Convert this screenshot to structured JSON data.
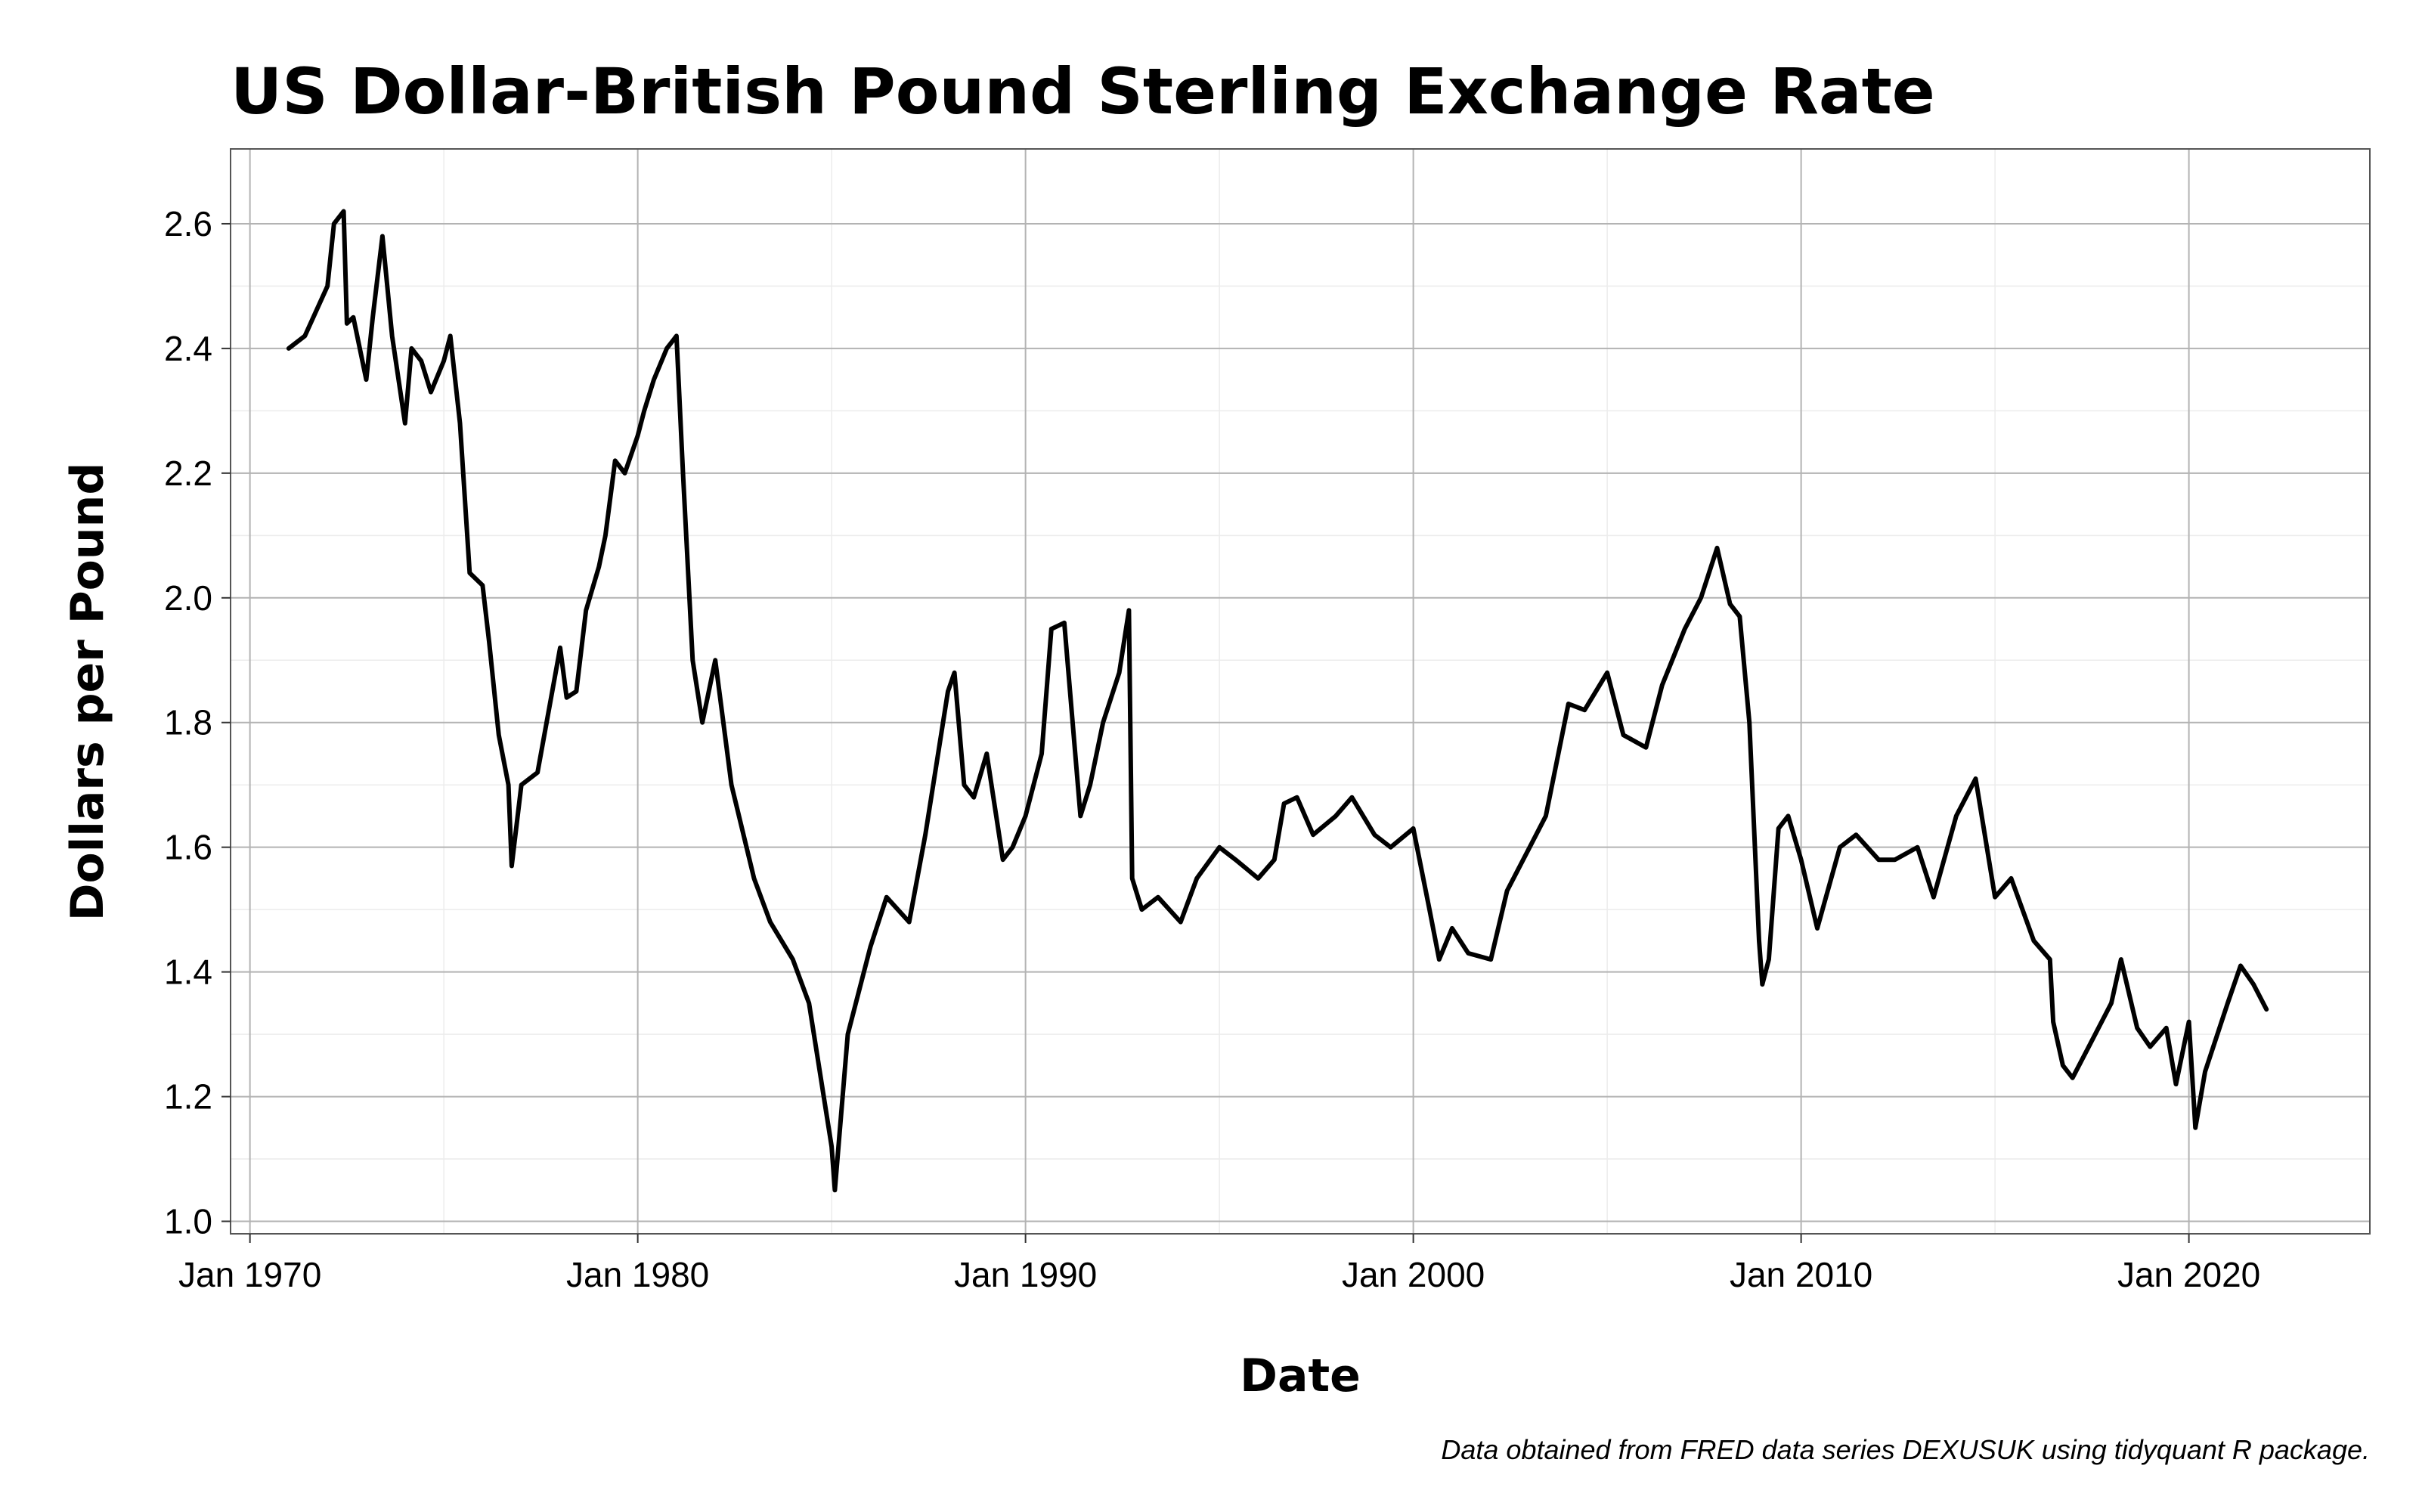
{
  "chart_data": {
    "type": "line",
    "title": "US Dollar-British Pound Sterling Exchange Rate",
    "xlabel": "Date",
    "ylabel": "Dollars per Pound",
    "caption": "Data obtained from FRED data series DEXUSUK using tidyquant R package.",
    "x_tick_labels": [
      "Jan 1970",
      "Jan 1980",
      "Jan 1990",
      "Jan 2000",
      "Jan 2010",
      "Jan 2020"
    ],
    "x_tick_years": [
      1970,
      1980,
      1990,
      2000,
      2010,
      2020
    ],
    "y_ticks": [
      1.0,
      1.2,
      1.4,
      1.6,
      1.8,
      2.0,
      2.2,
      2.4,
      2.6
    ],
    "y_tick_labels": [
      "1.0",
      "1.2",
      "1.4",
      "1.6",
      "1.8",
      "2.0",
      "2.2",
      "2.4",
      "2.6"
    ],
    "xlim": [
      "1969-07",
      "2024-09"
    ],
    "ylim": [
      0.98,
      2.72
    ],
    "grid": true,
    "line_color": "#000000",
    "series": [
      {
        "date": [
          "1971-01",
          "1971-06",
          "1972-01",
          "1972-03",
          "1972-06",
          "1972-07",
          "1972-09",
          "1973-01",
          "1973-03",
          "1973-06",
          "1973-09",
          "1974-01",
          "1974-03",
          "1974-06",
          "1974-09",
          "1975-01",
          "1975-03",
          "1975-06",
          "1975-09",
          "1976-01",
          "1976-03",
          "1976-06",
          "1976-09",
          "1976-10",
          "1977-01",
          "1977-06",
          "1978-01",
          "1978-03",
          "1978-06",
          "1978-09",
          "1979-01",
          "1979-03",
          "1979-06",
          "1979-09",
          "1980-01",
          "1980-03",
          "1980-06",
          "1980-10",
          "1981-01",
          "1981-03",
          "1981-06",
          "1981-09",
          "1982-01",
          "1982-06",
          "1983-01",
          "1983-06",
          "1984-01",
          "1984-06",
          "1985-01",
          "1985-02",
          "1985-06",
          "1986-01",
          "1986-06",
          "1987-01",
          "1987-06",
          "1988-01",
          "1988-03",
          "1988-06",
          "1988-09",
          "1989-01",
          "1989-06",
          "1989-09",
          "1990-01",
          "1990-06",
          "1990-09",
          "1991-01",
          "1991-06",
          "1991-09",
          "1992-01",
          "1992-06",
          "1992-09",
          "1992-10",
          "1993-01",
          "1993-06",
          "1994-01",
          "1994-06",
          "1995-01",
          "1995-06",
          "1996-01",
          "1996-06",
          "1996-09",
          "1997-01",
          "1997-06",
          "1998-01",
          "1998-06",
          "1999-01",
          "1999-06",
          "2000-01",
          "2000-06",
          "2000-09",
          "2001-01",
          "2001-06",
          "2002-01",
          "2002-06",
          "2003-01",
          "2003-06",
          "2004-01",
          "2004-06",
          "2005-01",
          "2005-06",
          "2006-01",
          "2006-06",
          "2007-01",
          "2007-06",
          "2007-11",
          "2008-03",
          "2008-06",
          "2008-09",
          "2008-12",
          "2009-01",
          "2009-03",
          "2009-06",
          "2009-09",
          "2010-01",
          "2010-06",
          "2011-01",
          "2011-06",
          "2012-01",
          "2012-06",
          "2013-01",
          "2013-06",
          "2014-01",
          "2014-07",
          "2015-01",
          "2015-06",
          "2016-01",
          "2016-06",
          "2016-07",
          "2016-10",
          "2017-01",
          "2017-06",
          "2018-01",
          "2018-04",
          "2018-09",
          "2019-01",
          "2019-06",
          "2019-09",
          "2020-01",
          "2020-03",
          "2020-06",
          "2021-01",
          "2021-05",
          "2021-09",
          "2022-01"
        ],
        "value": [
          2.4,
          2.42,
          2.5,
          2.6,
          2.62,
          2.44,
          2.45,
          2.35,
          2.45,
          2.58,
          2.42,
          2.28,
          2.4,
          2.38,
          2.33,
          2.38,
          2.42,
          2.28,
          2.04,
          2.02,
          1.93,
          1.78,
          1.7,
          1.57,
          1.7,
          1.72,
          1.92,
          1.84,
          1.85,
          1.98,
          2.05,
          2.1,
          2.22,
          2.2,
          2.26,
          2.3,
          2.35,
          2.4,
          2.42,
          2.2,
          1.9,
          1.8,
          1.9,
          1.7,
          1.55,
          1.48,
          1.42,
          1.35,
          1.12,
          1.05,
          1.3,
          1.44,
          1.52,
          1.48,
          1.62,
          1.85,
          1.88,
          1.7,
          1.68,
          1.75,
          1.58,
          1.6,
          1.65,
          1.75,
          1.95,
          1.96,
          1.65,
          1.7,
          1.8,
          1.88,
          1.98,
          1.55,
          1.5,
          1.52,
          1.48,
          1.55,
          1.6,
          1.58,
          1.55,
          1.58,
          1.67,
          1.68,
          1.62,
          1.65,
          1.68,
          1.62,
          1.6,
          1.63,
          1.5,
          1.42,
          1.47,
          1.43,
          1.42,
          1.53,
          1.6,
          1.65,
          1.83,
          1.82,
          1.88,
          1.78,
          1.76,
          1.86,
          1.95,
          2.0,
          2.08,
          1.99,
          1.97,
          1.8,
          1.45,
          1.38,
          1.42,
          1.63,
          1.65,
          1.58,
          1.47,
          1.6,
          1.62,
          1.58,
          1.58,
          1.6,
          1.52,
          1.65,
          1.71,
          1.52,
          1.55,
          1.45,
          1.42,
          1.32,
          1.25,
          1.23,
          1.28,
          1.35,
          1.42,
          1.31,
          1.28,
          1.31,
          1.22,
          1.32,
          1.15,
          1.24,
          1.35,
          1.41,
          1.38,
          1.34
        ]
      }
    ]
  }
}
